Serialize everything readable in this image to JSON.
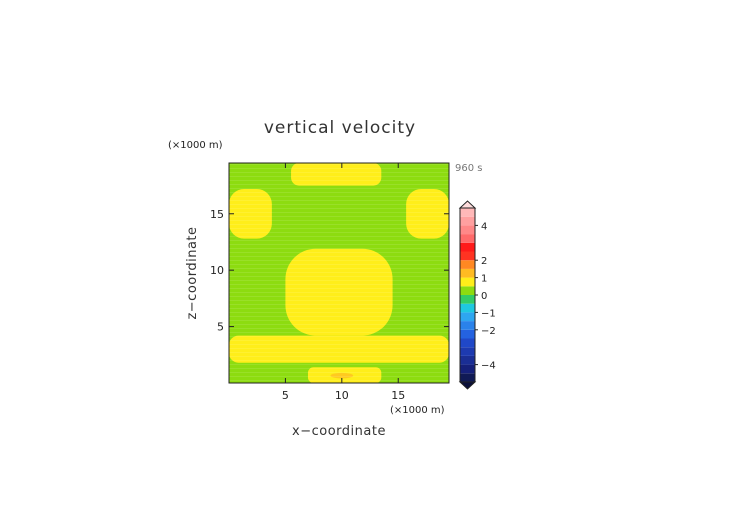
{
  "chart_data": {
    "type": "heatmap",
    "title": "vertical velocity",
    "xlabel": "x−coordinate",
    "ylabel": "z−coordinate",
    "x_unit": "(×1000 m)",
    "y_unit": "(×1000 m)",
    "time_label": "960 s",
    "xlim": [
      0,
      19.5
    ],
    "ylim": [
      0,
      19.5
    ],
    "x_ticks": [
      {
        "value": 5,
        "label": "5"
      },
      {
        "value": 10,
        "label": "10"
      },
      {
        "value": 15,
        "label": "15"
      }
    ],
    "y_ticks": [
      {
        "value": 5,
        "label": "5"
      },
      {
        "value": 10,
        "label": "10"
      },
      {
        "value": 15,
        "label": "15"
      }
    ],
    "background_value": 0,
    "regions": [
      {
        "name": "top-center",
        "level": "0 to 1",
        "x": [
          5.5,
          13.5
        ],
        "z": [
          17.5,
          19.5
        ]
      },
      {
        "name": "left-upper",
        "level": "0 to 1",
        "x": [
          0,
          3.8
        ],
        "z": [
          12.8,
          17.2
        ]
      },
      {
        "name": "right-upper",
        "level": "0 to 1",
        "x": [
          15.7,
          19.5
        ],
        "z": [
          12.8,
          17.2
        ]
      },
      {
        "name": "center-column",
        "level": "0 to 1",
        "x": [
          5.0,
          14.5
        ],
        "z": [
          4.2,
          11.9
        ]
      },
      {
        "name": "lower-band",
        "level": "0 to 1",
        "x": [
          0,
          19.5
        ],
        "z": [
          1.8,
          4.2
        ]
      },
      {
        "name": "bottom-center",
        "level": "0 to 1",
        "x": [
          7.0,
          13.5
        ],
        "z": [
          0,
          1.4
        ]
      },
      {
        "name": "bottom-peak",
        "level": "1 to 1.5",
        "x": [
          9.0,
          11.0
        ],
        "z": [
          0.4,
          0.9
        ]
      }
    ],
    "colorbar": {
      "levels": [
        {
          "min": -5.0,
          "max": -4.5,
          "color": "#101a55"
        },
        {
          "min": -4.5,
          "max": -4.0,
          "color": "#15207a"
        },
        {
          "min": -4.0,
          "max": -3.5,
          "color": "#1a2e95"
        },
        {
          "min": -3.5,
          "max": -3.0,
          "color": "#1d3ab0"
        },
        {
          "min": -3.0,
          "max": -2.5,
          "color": "#2048c8"
        },
        {
          "min": -2.5,
          "max": -2.0,
          "color": "#2462e0"
        },
        {
          "min": -2.0,
          "max": -1.5,
          "color": "#2a82ea"
        },
        {
          "min": -1.5,
          "max": -1.0,
          "color": "#2ea6f0"
        },
        {
          "min": -1.0,
          "max": -0.5,
          "color": "#1fc8e0"
        },
        {
          "min": -0.5,
          "max": 0.0,
          "color": "#33cc66"
        },
        {
          "min": 0.0,
          "max": 0.5,
          "color": "#8ddc10"
        },
        {
          "min": 0.5,
          "max": 1.0,
          "color": "#ffee1a"
        },
        {
          "min": 1.0,
          "max": 1.5,
          "color": "#ffbb22"
        },
        {
          "min": 1.5,
          "max": 2.0,
          "color": "#ff8822"
        },
        {
          "min": 2.0,
          "max": 2.5,
          "color": "#ff3322"
        },
        {
          "min": 2.5,
          "max": 3.0,
          "color": "#ff1a1a"
        },
        {
          "min": 3.0,
          "max": 3.5,
          "color": "#ff6a6a"
        },
        {
          "min": 3.5,
          "max": 4.0,
          "color": "#ff8888"
        },
        {
          "min": 4.0,
          "max": 4.5,
          "color": "#ffa0a0"
        },
        {
          "min": 4.5,
          "max": 5.0,
          "color": "#ffb8b8"
        }
      ],
      "tick_labels": [
        {
          "value": 4,
          "label": "4"
        },
        {
          "value": 2,
          "label": "2"
        },
        {
          "value": 1,
          "label": "1"
        },
        {
          "value": 0,
          "label": "0"
        },
        {
          "value": -1,
          "label": "−1"
        },
        {
          "value": -2,
          "label": "−2"
        },
        {
          "value": -4,
          "label": "−4"
        }
      ],
      "extend": "both",
      "over_color": "#ffdddd",
      "under_color": "#0a0f3a"
    }
  },
  "colors": {
    "level_0_to_0_5": "#8ddc10",
    "level_0_5_to_1": "#ffee1a",
    "level_1_to_1_5": "#ffbb22"
  }
}
